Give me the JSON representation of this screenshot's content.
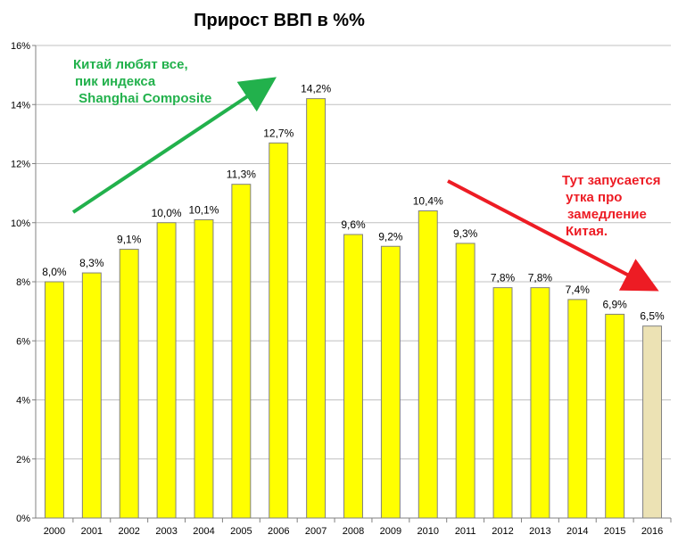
{
  "chart_data": {
    "type": "bar",
    "title": "Прирост ВВП в %%",
    "categories": [
      "2000",
      "2001",
      "2002",
      "2003",
      "2004",
      "2005",
      "2006",
      "2007",
      "2008",
      "2009",
      "2010",
      "2011",
      "2012",
      "2013",
      "2014",
      "2015",
      "2016"
    ],
    "values": [
      8.0,
      8.3,
      9.1,
      10.0,
      10.1,
      11.3,
      12.7,
      14.2,
      9.6,
      9.2,
      10.4,
      9.3,
      7.8,
      7.8,
      7.4,
      6.9,
      6.5
    ],
    "data_labels": [
      "8,0%",
      "8,3%",
      "9,1%",
      "10,0%",
      "10,1%",
      "11,3%",
      "12,7%",
      "14,2%",
      "9,6%",
      "9,2%",
      "10,4%",
      "9,3%",
      "7,8%",
      "7,8%",
      "7,4%",
      "6,9%",
      "6,5%"
    ],
    "ylim": [
      0,
      16
    ],
    "yticks": [
      "0%",
      "2%",
      "4%",
      "6%",
      "8%",
      "10%",
      "12%",
      "14%",
      "16%"
    ],
    "grid": true,
    "colors": {
      "bar": "#ffff00",
      "bar_highlight": "#ece2b4",
      "bar_border": "#808080",
      "grid": "#c0c0c0",
      "axis": "#808080",
      "annotation_green": "#22b14c",
      "annotation_red": "#ed1c24"
    },
    "highlight_index": 16,
    "annotations": [
      {
        "id": "green-note",
        "lines": [
          "Китай любят все,",
          "пик индекса",
          " Shanghai Composite"
        ],
        "color": "#22b14c",
        "arrow_direction": "up-right"
      },
      {
        "id": "red-note",
        "lines": [
          "Тут запусается",
          " утка про",
          "замедление",
          "Китая."
        ],
        "color": "#ed1c24",
        "arrow_direction": "down-right"
      }
    ]
  }
}
